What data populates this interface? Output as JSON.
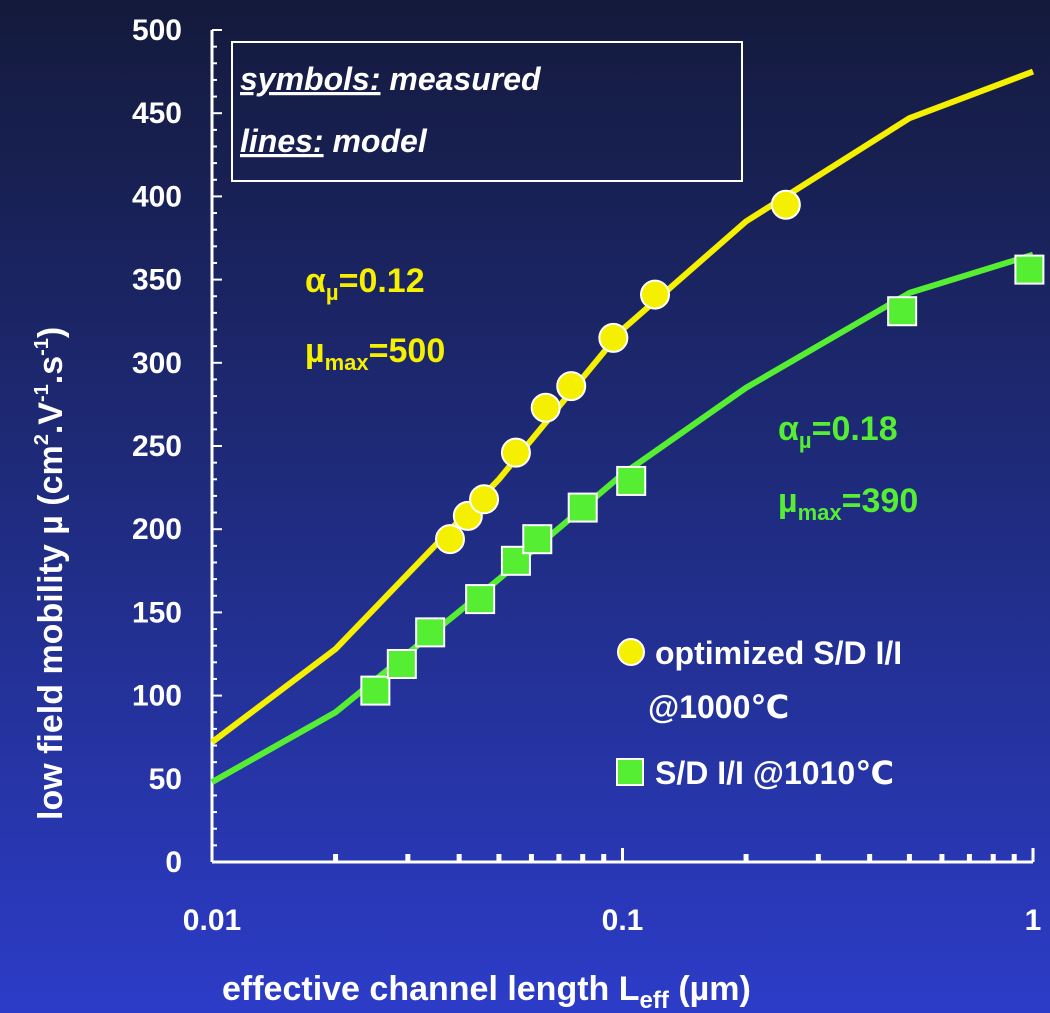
{
  "chart_data": {
    "type": "line",
    "xlabel_main": "effective channel length L",
    "xlabel_sub": "eff",
    "xlabel_tail": " (µm)",
    "ylabel_main": "low field mobility µ (cm",
    "ylabel_sup1": "2",
    "ylabel_mid": ".V",
    "ylabel_sup2": "-1",
    "ylabel_mid2": ".s",
    "ylabel_sup3": "-1",
    "ylabel_tail": ")",
    "x_scale": "log",
    "xlim": [
      0.01,
      1
    ],
    "ylim": [
      0,
      500
    ],
    "x_tick_labels": [
      "0.01",
      "0.1",
      "1"
    ],
    "y_tick_labels": [
      "0",
      "50",
      "100",
      "150",
      "200",
      "250",
      "300",
      "350",
      "400",
      "450",
      "500"
    ],
    "note_line1_prefix": "symbols:",
    "note_line1_rest": " measured",
    "note_line2_prefix": "lines:",
    "note_line2_rest": " model",
    "colors": {
      "optimized": "#f5f000",
      "standard": "#55ee33",
      "axis": "#ffffff"
    },
    "series": [
      {
        "name": "optimized S/D I/I @1000℃",
        "legend_line1": "optimized S/D I/I",
        "legend_line2": "@1000℃",
        "marker": "circle",
        "points": [
          {
            "x": 0.038,
            "y": 194
          },
          {
            "x": 0.042,
            "y": 208
          },
          {
            "x": 0.046,
            "y": 218
          },
          {
            "x": 0.055,
            "y": 246
          },
          {
            "x": 0.065,
            "y": 273
          },
          {
            "x": 0.075,
            "y": 286
          },
          {
            "x": 0.095,
            "y": 315
          },
          {
            "x": 0.12,
            "y": 341
          },
          {
            "x": 0.25,
            "y": 395
          }
        ],
        "model": [
          {
            "x": 0.01,
            "y": 72
          },
          {
            "x": 0.02,
            "y": 128
          },
          {
            "x": 0.05,
            "y": 230
          },
          {
            "x": 0.1,
            "y": 320
          },
          {
            "x": 0.2,
            "y": 385
          },
          {
            "x": 0.5,
            "y": 447
          },
          {
            "x": 1.0,
            "y": 475
          }
        ],
        "alpha_label": "α",
        "alpha_sub": "µ",
        "alpha_value": "=0.12",
        "mu_label": "µ",
        "mu_sub": "max",
        "mu_value": "=500"
      },
      {
        "name": "S/D I/I @1010℃",
        "legend_line1": "S/D I/I @1010℃",
        "marker": "square",
        "points": [
          {
            "x": 0.025,
            "y": 103
          },
          {
            "x": 0.029,
            "y": 119
          },
          {
            "x": 0.034,
            "y": 138
          },
          {
            "x": 0.045,
            "y": 158
          },
          {
            "x": 0.055,
            "y": 181
          },
          {
            "x": 0.062,
            "y": 194
          },
          {
            "x": 0.08,
            "y": 213
          },
          {
            "x": 0.105,
            "y": 229
          },
          {
            "x": 0.48,
            "y": 331
          },
          {
            "x": 0.98,
            "y": 356
          }
        ],
        "model": [
          {
            "x": 0.01,
            "y": 48
          },
          {
            "x": 0.02,
            "y": 90
          },
          {
            "x": 0.05,
            "y": 170
          },
          {
            "x": 0.1,
            "y": 233
          },
          {
            "x": 0.2,
            "y": 285
          },
          {
            "x": 0.5,
            "y": 342
          },
          {
            "x": 1.0,
            "y": 365
          }
        ],
        "alpha_label": "α",
        "alpha_sub": "µ",
        "alpha_value": "=0.18",
        "mu_label": "µ",
        "mu_sub": "max",
        "mu_value": "=390"
      }
    ]
  }
}
